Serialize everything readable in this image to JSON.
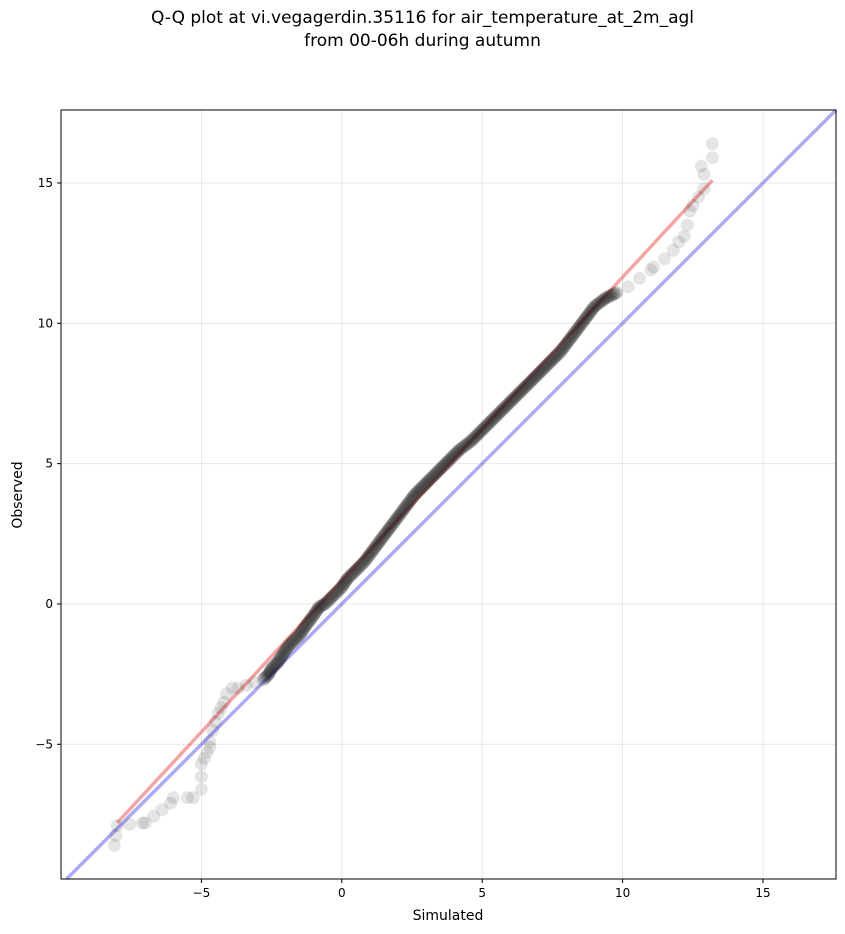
{
  "chart_data": {
    "type": "scatter",
    "title": "Q-Q plot at vi.vegagerdin.35116 for air_temperature_at_2m_agl",
    "subtitle": "from 00-06h during autumn",
    "xlabel": "Simulated",
    "ylabel": "Observed",
    "xlim": [
      -10,
      17.6
    ],
    "ylim": [
      -9.8,
      17.6
    ],
    "xticks": [
      -5,
      0,
      5,
      10,
      15
    ],
    "yticks": [
      -5,
      0,
      5,
      10,
      15
    ],
    "xtick_labels": [
      "−5",
      "0",
      "5",
      "10",
      "15"
    ],
    "ytick_labels": [
      "−5",
      "0",
      "5",
      "10",
      "15"
    ],
    "grid": true,
    "reference_line": {
      "color": "#0000dd",
      "slope": 1,
      "intercept": 0
    },
    "fit_line": {
      "color": "#e00000",
      "x": [
        -8.0,
        13.2
      ],
      "y": [
        -7.8,
        15.1
      ]
    },
    "points_color": "#000000",
    "points": [
      [
        -8.1,
        -8.6
      ],
      [
        -8.0,
        -7.9
      ],
      [
        -7.1,
        -7.8
      ],
      [
        -7.0,
        -7.8
      ],
      [
        -6.1,
        -7.1
      ],
      [
        -6.0,
        -6.9
      ],
      [
        -5.5,
        -6.9
      ],
      [
        -5.3,
        -6.9
      ],
      [
        -5.0,
        -6.6
      ],
      [
        -5.0,
        -5.7
      ],
      [
        -4.9,
        -5.5
      ],
      [
        -4.8,
        -5.3
      ],
      [
        -4.7,
        -5.1
      ],
      [
        -4.7,
        -4.9
      ],
      [
        -4.6,
        -4.5
      ],
      [
        -4.5,
        -4.2
      ],
      [
        -4.4,
        -3.9
      ],
      [
        -4.3,
        -3.7
      ],
      [
        -4.2,
        -3.5
      ],
      [
        -4.1,
        -3.2
      ],
      [
        -3.9,
        -3.0
      ],
      [
        -3.7,
        -3.0
      ],
      [
        -3.4,
        -2.9
      ],
      [
        -3.1,
        -2.8
      ],
      [
        -2.8,
        -2.7
      ],
      [
        -2.6,
        -2.5
      ],
      [
        -2.5,
        -2.3
      ],
      [
        -2.3,
        -2.1
      ],
      [
        -2.1,
        -1.8
      ],
      [
        -1.9,
        -1.5
      ],
      [
        -1.7,
        -1.3
      ],
      [
        -1.5,
        -1.1
      ],
      [
        -1.3,
        -0.8
      ],
      [
        -1.0,
        -0.4
      ],
      [
        -0.8,
        -0.1
      ],
      [
        -0.6,
        0.0
      ],
      [
        -0.3,
        0.3
      ],
      [
        0.0,
        0.6
      ],
      [
        0.2,
        0.9
      ],
      [
        0.5,
        1.2
      ],
      [
        0.8,
        1.5
      ],
      [
        1.1,
        1.9
      ],
      [
        1.4,
        2.3
      ],
      [
        1.7,
        2.7
      ],
      [
        2.0,
        3.1
      ],
      [
        2.3,
        3.5
      ],
      [
        2.6,
        3.9
      ],
      [
        3.0,
        4.3
      ],
      [
        3.4,
        4.7
      ],
      [
        3.8,
        5.1
      ],
      [
        4.2,
        5.5
      ],
      [
        4.6,
        5.8
      ],
      [
        5.0,
        6.2
      ],
      [
        5.4,
        6.6
      ],
      [
        5.8,
        7.0
      ],
      [
        6.2,
        7.4
      ],
      [
        6.6,
        7.8
      ],
      [
        7.0,
        8.2
      ],
      [
        7.4,
        8.6
      ],
      [
        7.8,
        9.0
      ],
      [
        8.1,
        9.4
      ],
      [
        8.4,
        9.8
      ],
      [
        8.7,
        10.2
      ],
      [
        9.0,
        10.6
      ],
      [
        9.4,
        10.9
      ],
      [
        9.8,
        11.1
      ],
      [
        10.2,
        11.3
      ],
      [
        10.6,
        11.6
      ],
      [
        11.0,
        11.9
      ],
      [
        11.1,
        12.0
      ],
      [
        11.5,
        12.3
      ],
      [
        11.8,
        12.6
      ],
      [
        12.0,
        12.9
      ],
      [
        12.2,
        13.1
      ],
      [
        12.3,
        13.5
      ],
      [
        12.4,
        14.0
      ],
      [
        12.5,
        14.2
      ],
      [
        12.9,
        14.8
      ],
      [
        12.9,
        15.3
      ],
      [
        12.8,
        15.6
      ],
      [
        13.2,
        15.9
      ],
      [
        13.2,
        16.4
      ]
    ]
  }
}
